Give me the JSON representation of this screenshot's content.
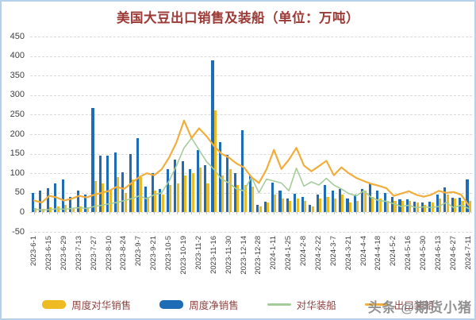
{
  "page": {
    "watermark": "头条 @期货小猪"
  },
  "chart_data": {
    "type": "bar",
    "subtype": "combo-bar-line",
    "title": "美国大豆出口销售及装船（单位：万吨）",
    "title_color": "#9c3a36",
    "ylim": [
      -50,
      450
    ],
    "ytick_step": 50,
    "grid": "horizontal-dashed",
    "legend_position": "bottom",
    "x_label_every": 2,
    "x": [
      "2023-6-1",
      "2023-6-8",
      "2023-6-15",
      "2023-6-22",
      "2023-6-29",
      "2023-7-6",
      "2023-7-13",
      "2023-7-20",
      "2023-7-27",
      "2023-8-3",
      "2023-8-10",
      "2023-8-17",
      "2023-8-24",
      "2023-8-31",
      "2023-9-7",
      "2023-9-14",
      "2023-9-21",
      "2023-9-28",
      "2023-10-5",
      "2023-10-12",
      "2023-10-19",
      "2023-10-26",
      "2023-11-2",
      "2023-11-9",
      "2023-11-16",
      "2023-11-23",
      "2023-11-30",
      "2023-12-7",
      "2023-12-14",
      "2023-12-21",
      "2023-12-28",
      "2024-1-4",
      "2024-1-11",
      "2024-1-18",
      "2024-1-25",
      "2024-2-1",
      "2024-2-8",
      "2024-2-15",
      "2024-2-22",
      "2024-2-29",
      "2024-3-7",
      "2024-3-14",
      "2024-3-21",
      "2024-3-28",
      "2024-4-4",
      "2024-4-11",
      "2024-4-18",
      "2024-4-25",
      "2024-5-2",
      "2024-5-9",
      "2024-5-16",
      "2024-5-23",
      "2024-5-30",
      "2024-6-6",
      "2024-6-13",
      "2024-6-20",
      "2024-6-27",
      "2024-7-4",
      "2024-7-11"
    ],
    "series": [
      {
        "name": "周度对华销售",
        "type": "bar",
        "slot": 1,
        "color": "#efbb22",
        "values": [
          10,
          8,
          12,
          15,
          20,
          10,
          15,
          12,
          80,
          75,
          55,
          90,
          50,
          85,
          90,
          40,
          55,
          45,
          70,
          75,
          95,
          100,
          115,
          75,
          260,
          95,
          110,
          70,
          70,
          65,
          15,
          25,
          45,
          35,
          30,
          35,
          30,
          15,
          35,
          40,
          35,
          45,
          25,
          30,
          55,
          40,
          35,
          30,
          30,
          30,
          30,
          25,
          20,
          25,
          35,
          45,
          35,
          30,
          30
        ]
      },
      {
        "name": "周度净销售",
        "type": "bar",
        "slot": 0,
        "color": "#1e6cb5",
        "values": [
          50,
          55,
          62,
          75,
          85,
          40,
          55,
          45,
          268,
          145,
          146,
          153,
          103,
          150,
          190,
          65,
          100,
          60,
          110,
          135,
          130,
          110,
          160,
          120,
          390,
          180,
          148,
          100,
          210,
          95,
          20,
          28,
          77,
          55,
          35,
          48,
          40,
          20,
          45,
          70,
          55,
          60,
          35,
          45,
          60,
          75,
          55,
          50,
          40,
          34,
          33,
          27,
          25,
          28,
          45,
          63,
          38,
          37,
          85
        ]
      },
      {
        "name": "对华装船",
        "type": "line",
        "color": "#a5cd9b",
        "values": [
          8,
          6,
          7,
          9,
          8,
          10,
          12,
          10,
          15,
          18,
          22,
          25,
          30,
          35,
          42,
          35,
          45,
          50,
          80,
          120,
          165,
          190,
          160,
          130,
          110,
          85,
          75,
          60,
          55,
          90,
          50,
          85,
          80,
          75,
          55,
          113,
          67,
          78,
          70,
          87,
          70,
          60,
          48,
          42,
          55,
          38,
          30,
          28,
          22,
          15,
          18,
          12,
          14,
          12,
          15,
          25,
          12,
          18,
          10
        ]
      },
      {
        "name": "出口装船",
        "type": "line",
        "color": "#f2ae3c",
        "values": [
          30,
          25,
          42,
          38,
          30,
          35,
          42,
          38,
          45,
          50,
          55,
          65,
          60,
          75,
          90,
          100,
          95,
          110,
          140,
          180,
          235,
          190,
          215,
          195,
          170,
          150,
          140,
          125,
          115,
          90,
          75,
          110,
          160,
          111,
          135,
          165,
          120,
          105,
          118,
          132,
          95,
          115,
          100,
          88,
          80,
          73,
          68,
          62,
          42,
          48,
          54,
          45,
          40,
          45,
          55,
          50,
          52,
          45,
          18
        ]
      }
    ]
  }
}
